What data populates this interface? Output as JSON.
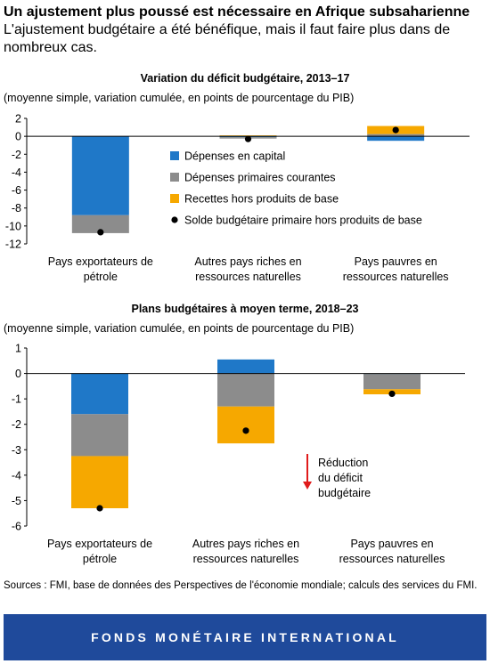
{
  "header": {
    "title": "Un ajustement plus poussé est nécessaire en Afrique subsaharienne",
    "subtitle": "L'ajustement budgétaire a été bénéfique, mais il faut faire plus dans de nombreux cas."
  },
  "colors": {
    "capital": "#1f78c8",
    "courantes": "#8c8c8c",
    "recettes": "#f6a800",
    "solde": "#000000",
    "arrow": "#e01b1b",
    "footer": "#1f4a9b"
  },
  "chart_data": [
    {
      "type": "bar",
      "stacked": true,
      "title": "Variation du déficit budgétaire, 2013–17",
      "unit": "(moyenne simple, variation cumulée, en points de pourcentage du PIB)",
      "categories": [
        "Pays exportateurs de pétrole",
        "Autres pays riches en ressources naturelles",
        "Pays pauvres en ressources naturelles"
      ],
      "ylim": [
        -12,
        2
      ],
      "yticks": [
        2,
        0,
        -2,
        -4,
        -6,
        -8,
        -10,
        -12
      ],
      "grid": false,
      "legend_position": "right",
      "series": [
        {
          "name": "Dépenses en capital",
          "kind": "bar",
          "values": [
            -8.8,
            -0.1,
            -0.5
          ]
        },
        {
          "name": "Dépenses primaires courantes",
          "kind": "bar",
          "values": [
            -2.0,
            -0.15,
            0.25
          ]
        },
        {
          "name": "Recettes hors produits de base",
          "kind": "bar",
          "values": [
            0,
            0.1,
            0.9
          ]
        },
        {
          "name": "Solde budgétaire primaire hors produits de base",
          "kind": "point",
          "values": [
            -10.7,
            -0.3,
            0.7
          ]
        }
      ]
    },
    {
      "type": "bar",
      "stacked": true,
      "title": "Plans budgétaires à moyen terme, 2018–23",
      "unit": "(moyenne simple, variation cumulée, en points de pourcentage du PIB)",
      "categories": [
        "Pays exportateurs de pétrole",
        "Autres pays riches en ressources naturelles",
        "Pays pauvres en ressources naturelles"
      ],
      "ylim": [
        -6,
        1
      ],
      "yticks": [
        1,
        0,
        -1,
        -2,
        -3,
        -4,
        -5,
        -6
      ],
      "grid": false,
      "annotation": "Réduction du déficit budgétaire",
      "series": [
        {
          "name": "Dépenses en capital",
          "kind": "bar",
          "values": [
            -1.6,
            0.55,
            -0.02
          ]
        },
        {
          "name": "Dépenses primaires courantes",
          "kind": "bar",
          "values": [
            -1.65,
            -1.3,
            -0.6
          ]
        },
        {
          "name": "Recettes hors produits de base",
          "kind": "bar",
          "values": [
            -2.05,
            -1.45,
            -0.2
          ]
        },
        {
          "name": "Solde budgétaire primaire hors produits de base",
          "kind": "point",
          "values": [
            -5.3,
            -2.25,
            -0.8
          ]
        }
      ]
    }
  ],
  "sources": "Sources : FMI, base de données des Perspectives de l'économie mondiale; calculs des services du FMI.",
  "footer": {
    "text": "FONDS MONÉTAIRE INTERNATIONAL"
  }
}
